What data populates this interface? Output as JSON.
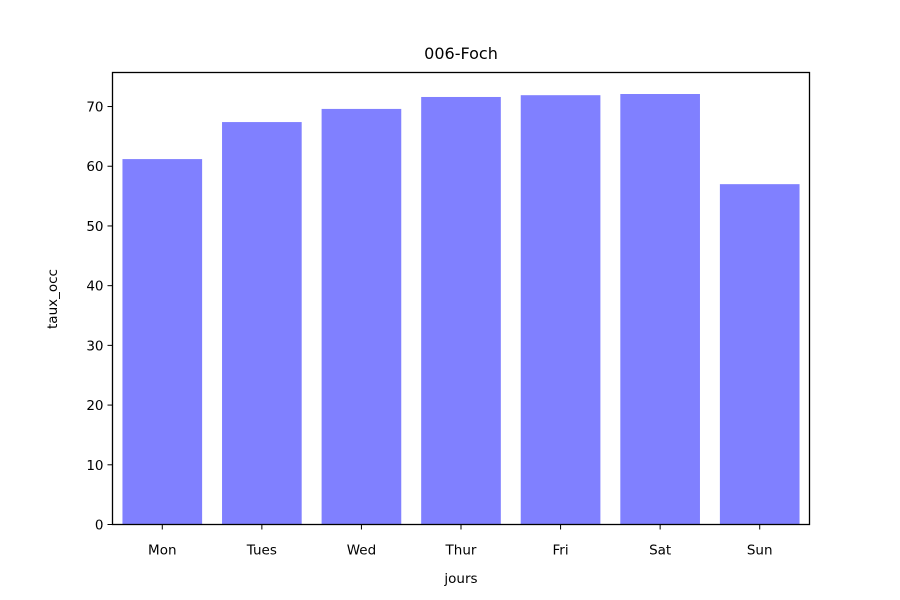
{
  "chart_data": {
    "type": "bar",
    "title": "006-Foch",
    "xlabel": "jours",
    "ylabel": "taux_occ",
    "categories": [
      "Mon",
      "Tues",
      "Wed",
      "Thur",
      "Fri",
      "Sat",
      "Sun"
    ],
    "values": [
      61.2,
      67.4,
      69.6,
      71.6,
      71.9,
      72.1,
      57.0
    ],
    "ylim": [
      0,
      75.7
    ],
    "yticks": [
      0,
      10,
      20,
      30,
      40,
      50,
      60,
      70
    ],
    "bar_color": "#8080ff",
    "grid": false,
    "legend": false
  }
}
